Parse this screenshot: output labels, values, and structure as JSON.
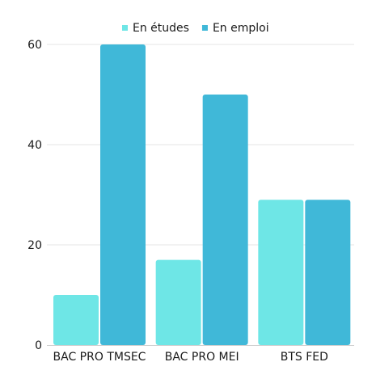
{
  "chart_data": {
    "type": "bar",
    "categories": [
      "BAC PRO TMSEC",
      "BAC PRO MEI",
      "BTS FED"
    ],
    "series": [
      {
        "name": "En études",
        "values": [
          10,
          17,
          29
        ],
        "color": "#6ee6e6"
      },
      {
        "name": "En emploi",
        "values": [
          60,
          50,
          29
        ],
        "color": "#40b8d8"
      }
    ],
    "ylim": [
      0,
      60
    ],
    "yticks": [
      0,
      20,
      40,
      60
    ],
    "title": "",
    "xlabel": "",
    "ylabel": "",
    "grid": true,
    "legend": "top"
  }
}
